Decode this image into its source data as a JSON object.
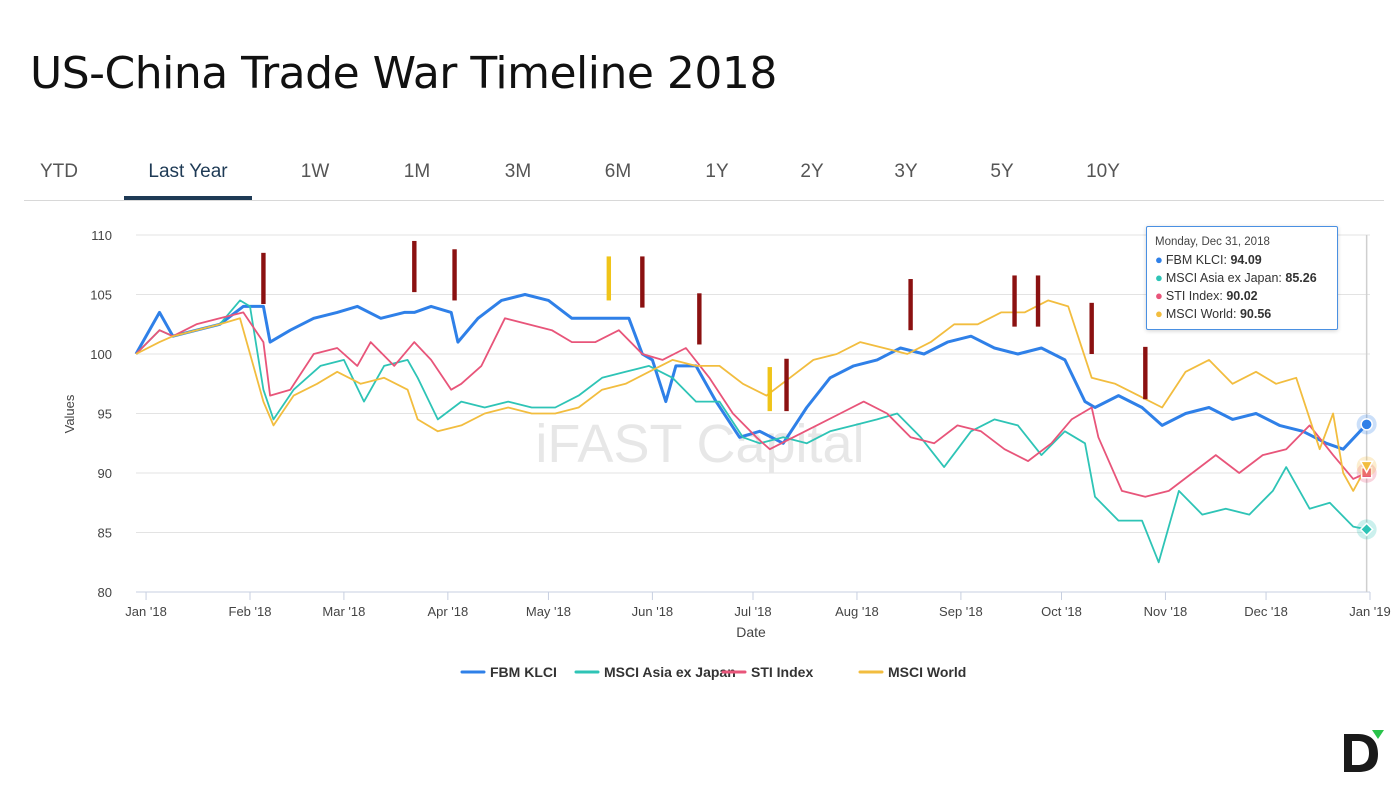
{
  "title": "US-China Trade War Timeline 2018",
  "tabs": [
    {
      "label": "YTD",
      "active": false
    },
    {
      "label": "Last Year",
      "active": true
    },
    {
      "label": "1W",
      "active": false
    },
    {
      "label": "1M",
      "active": false
    },
    {
      "label": "3M",
      "active": false
    },
    {
      "label": "6M",
      "active": false
    },
    {
      "label": "1Y",
      "active": false
    },
    {
      "label": "2Y",
      "active": false
    },
    {
      "label": "3Y",
      "active": false
    },
    {
      "label": "5Y",
      "active": false
    },
    {
      "label": "10Y",
      "active": false
    }
  ],
  "tooltip": {
    "date": "Monday, Dec 31, 2018",
    "rows": [
      {
        "name": "FBM KLCI",
        "value": "94.09",
        "color": "#2f80e8"
      },
      {
        "name": "MSCI Asia ex Japan",
        "value": "85.26",
        "color": "#2ec4b6"
      },
      {
        "name": "STI Index",
        "value": "90.02",
        "color": "#e8557a"
      },
      {
        "name": "MSCI World",
        "value": "90.56",
        "color": "#f2bd3f"
      }
    ]
  },
  "watermark": "iFAST Capital",
  "chart_data": {
    "type": "line",
    "xlabel": "Date",
    "ylabel": "Values",
    "ylim": [
      80,
      110
    ],
    "yticks": [
      80,
      85,
      90,
      95,
      100,
      105,
      110
    ],
    "x_range": [
      "2017-12-29",
      "2019-01-01"
    ],
    "xticks": [
      {
        "label": "Jan '18",
        "date": "2018-01-01"
      },
      {
        "label": "Feb '18",
        "date": "2018-02-01"
      },
      {
        "label": "Mar '18",
        "date": "2018-03-01"
      },
      {
        "label": "Apr '18",
        "date": "2018-04-01"
      },
      {
        "label": "May '18",
        "date": "2018-05-01"
      },
      {
        "label": "Jun '18",
        "date": "2018-06-01"
      },
      {
        "label": "Jul '18",
        "date": "2018-07-01"
      },
      {
        "label": "Aug '18",
        "date": "2018-08-01"
      },
      {
        "label": "Sep '18",
        "date": "2018-09-01"
      },
      {
        "label": "Oct '18",
        "date": "2018-10-01"
      },
      {
        "label": "Nov '18",
        "date": "2018-11-01"
      },
      {
        "label": "Dec '18",
        "date": "2018-12-01"
      },
      {
        "label": "Jan '19",
        "date": "2019-01-01"
      }
    ],
    "grid": true,
    "legend": "bottom",
    "series": [
      {
        "name": "FBM KLCI",
        "color": "#2f80e8",
        "x": [
          "2017-12-29",
          "2018-01-05",
          "2018-01-09",
          "2018-01-16",
          "2018-01-23",
          "2018-01-30",
          "2018-02-05",
          "2018-02-07",
          "2018-02-13",
          "2018-02-20",
          "2018-02-27",
          "2018-03-05",
          "2018-03-12",
          "2018-03-19",
          "2018-03-22",
          "2018-03-27",
          "2018-04-02",
          "2018-04-04",
          "2018-04-10",
          "2018-04-17",
          "2018-04-24",
          "2018-05-01",
          "2018-05-08",
          "2018-05-15",
          "2018-05-22",
          "2018-05-25",
          "2018-05-29",
          "2018-06-01",
          "2018-06-05",
          "2018-06-08",
          "2018-06-14",
          "2018-06-20",
          "2018-06-27",
          "2018-07-03",
          "2018-07-10",
          "2018-07-17",
          "2018-07-24",
          "2018-07-31",
          "2018-08-07",
          "2018-08-14",
          "2018-08-21",
          "2018-08-28",
          "2018-09-04",
          "2018-09-11",
          "2018-09-18",
          "2018-09-25",
          "2018-10-02",
          "2018-10-08",
          "2018-10-11",
          "2018-10-18",
          "2018-10-25",
          "2018-10-31",
          "2018-11-07",
          "2018-11-14",
          "2018-11-21",
          "2018-11-28",
          "2018-12-05",
          "2018-12-12",
          "2018-12-19",
          "2018-12-24",
          "2018-12-31"
        ],
        "values": [
          100,
          103.5,
          101.5,
          102,
          102.5,
          104,
          104,
          101,
          102,
          103,
          103.5,
          104,
          103,
          103.5,
          103.5,
          104,
          103.5,
          101,
          103,
          104.5,
          105,
          104.5,
          103,
          103,
          103,
          103,
          100,
          99.5,
          96,
          99,
          99,
          96,
          93,
          93.5,
          92.5,
          95.5,
          98,
          99,
          99.5,
          100.5,
          100,
          101,
          101.5,
          100.5,
          100,
          100.5,
          99.5,
          96,
          95.5,
          96.5,
          95.5,
          94,
          95,
          95.5,
          94.5,
          95,
          94,
          93.5,
          92.5,
          92,
          94.09
        ]
      },
      {
        "name": "MSCI Asia ex Japan",
        "color": "#2ec4b6",
        "x": [
          "2017-12-29",
          "2018-01-05",
          "2018-01-09",
          "2018-01-16",
          "2018-01-23",
          "2018-01-29",
          "2018-02-01",
          "2018-02-05",
          "2018-02-08",
          "2018-02-14",
          "2018-02-22",
          "2018-03-01",
          "2018-03-07",
          "2018-03-13",
          "2018-03-20",
          "2018-03-23",
          "2018-03-29",
          "2018-04-05",
          "2018-04-12",
          "2018-04-19",
          "2018-04-26",
          "2018-05-03",
          "2018-05-10",
          "2018-05-17",
          "2018-05-24",
          "2018-05-31",
          "2018-06-07",
          "2018-06-14",
          "2018-06-21",
          "2018-06-28",
          "2018-07-03",
          "2018-07-10",
          "2018-07-17",
          "2018-07-24",
          "2018-07-31",
          "2018-08-07",
          "2018-08-13",
          "2018-08-20",
          "2018-08-27",
          "2018-09-04",
          "2018-09-11",
          "2018-09-18",
          "2018-09-25",
          "2018-10-02",
          "2018-10-08",
          "2018-10-11",
          "2018-10-18",
          "2018-10-25",
          "2018-10-30",
          "2018-11-05",
          "2018-11-12",
          "2018-11-19",
          "2018-11-26",
          "2018-12-03",
          "2018-12-07",
          "2018-12-14",
          "2018-12-20",
          "2018-12-27",
          "2018-12-31"
        ],
        "values": [
          100,
          102,
          101.5,
          102,
          102.5,
          104.5,
          104,
          97,
          94.5,
          97,
          99,
          99.5,
          96,
          99,
          99.5,
          98,
          94.5,
          96,
          95.5,
          96,
          95.5,
          95.5,
          96.5,
          98,
          98.5,
          99,
          98,
          96,
          96,
          93,
          92.5,
          93,
          92.5,
          93.5,
          94,
          94.5,
          95,
          93,
          90.5,
          93.5,
          94.5,
          94,
          91.5,
          93.5,
          92.5,
          88,
          86,
          86,
          82.5,
          88.5,
          86.5,
          87,
          86.5,
          88.5,
          90.5,
          87,
          87.5,
          85.5,
          85.26
        ]
      },
      {
        "name": "STI Index",
        "color": "#e8557a",
        "x": [
          "2017-12-29",
          "2018-01-05",
          "2018-01-09",
          "2018-01-16",
          "2018-01-23",
          "2018-01-30",
          "2018-02-05",
          "2018-02-07",
          "2018-02-13",
          "2018-02-20",
          "2018-02-27",
          "2018-03-05",
          "2018-03-09",
          "2018-03-16",
          "2018-03-22",
          "2018-03-27",
          "2018-04-02",
          "2018-04-05",
          "2018-04-11",
          "2018-04-18",
          "2018-04-25",
          "2018-05-02",
          "2018-05-08",
          "2018-05-15",
          "2018-05-22",
          "2018-05-29",
          "2018-06-04",
          "2018-06-11",
          "2018-06-18",
          "2018-06-25",
          "2018-07-02",
          "2018-07-06",
          "2018-07-13",
          "2018-07-20",
          "2018-07-27",
          "2018-08-03",
          "2018-08-10",
          "2018-08-17",
          "2018-08-24",
          "2018-08-31",
          "2018-09-07",
          "2018-09-14",
          "2018-09-21",
          "2018-09-28",
          "2018-10-04",
          "2018-10-10",
          "2018-10-12",
          "2018-10-19",
          "2018-10-26",
          "2018-11-02",
          "2018-11-09",
          "2018-11-16",
          "2018-11-23",
          "2018-11-30",
          "2018-12-07",
          "2018-12-14",
          "2018-12-21",
          "2018-12-27",
          "2018-12-31"
        ],
        "values": [
          100,
          102,
          101.5,
          102.5,
          103,
          103.5,
          101,
          96.5,
          97,
          100,
          100.5,
          99,
          101,
          99,
          101,
          99.5,
          97,
          97.5,
          99,
          103,
          102.5,
          102,
          101,
          101,
          102,
          100,
          99.5,
          100.5,
          98,
          95,
          93,
          92,
          93,
          94,
          95,
          96,
          95,
          93,
          92.5,
          94,
          93.5,
          92,
          91,
          92.5,
          94.5,
          95.5,
          93,
          88.5,
          88,
          88.5,
          90,
          91.5,
          90,
          91.5,
          92,
          94,
          91.5,
          89.5,
          90.02
        ]
      },
      {
        "name": "MSCI World",
        "color": "#f2bd3f",
        "x": [
          "2017-12-29",
          "2018-01-05",
          "2018-01-09",
          "2018-01-16",
          "2018-01-23",
          "2018-01-29",
          "2018-02-02",
          "2018-02-05",
          "2018-02-08",
          "2018-02-14",
          "2018-02-21",
          "2018-02-27",
          "2018-03-06",
          "2018-03-13",
          "2018-03-20",
          "2018-03-23",
          "2018-03-29",
          "2018-04-05",
          "2018-04-12",
          "2018-04-19",
          "2018-04-26",
          "2018-05-03",
          "2018-05-10",
          "2018-05-17",
          "2018-05-24",
          "2018-05-31",
          "2018-06-07",
          "2018-06-14",
          "2018-06-21",
          "2018-06-28",
          "2018-07-05",
          "2018-07-12",
          "2018-07-19",
          "2018-07-26",
          "2018-08-02",
          "2018-08-09",
          "2018-08-16",
          "2018-08-23",
          "2018-08-30",
          "2018-09-06",
          "2018-09-13",
          "2018-09-20",
          "2018-09-27",
          "2018-10-03",
          "2018-10-10",
          "2018-10-17",
          "2018-10-24",
          "2018-10-31",
          "2018-11-07",
          "2018-11-14",
          "2018-11-21",
          "2018-11-28",
          "2018-12-04",
          "2018-12-10",
          "2018-12-17",
          "2018-12-21",
          "2018-12-24",
          "2018-12-27",
          "2018-12-31"
        ],
        "values": [
          100,
          101,
          101.5,
          102,
          102.5,
          103,
          99,
          96,
          94,
          96.5,
          97.5,
          98.5,
          97.5,
          98,
          97,
          94.5,
          93.5,
          94,
          95,
          95.5,
          95,
          95,
          95.5,
          97,
          97.5,
          98.5,
          99.5,
          99,
          99,
          97.5,
          96.5,
          98,
          99.5,
          100,
          101,
          100.5,
          100,
          101,
          102.5,
          102.5,
          103.5,
          103.5,
          104.5,
          104,
          98,
          97.5,
          96.5,
          95.5,
          98.5,
          99.5,
          97.5,
          98.5,
          97.5,
          98,
          92,
          95,
          90,
          88.5,
          90.56
        ]
      }
    ],
    "event_markers": [
      {
        "date": "2018-02-05",
        "low": 104.2,
        "high": 108.5,
        "color": "#8b1111"
      },
      {
        "date": "2018-03-22",
        "low": 105.2,
        "high": 109.5,
        "color": "#8b1111"
      },
      {
        "date": "2018-04-03",
        "low": 104.5,
        "high": 108.8,
        "color": "#8b1111"
      },
      {
        "date": "2018-05-19",
        "low": 104.5,
        "high": 108.2,
        "color": "#f0c419"
      },
      {
        "date": "2018-05-29",
        "low": 103.9,
        "high": 108.2,
        "color": "#8b1111"
      },
      {
        "date": "2018-06-15",
        "low": 100.8,
        "high": 105.1,
        "color": "#8b1111"
      },
      {
        "date": "2018-07-06",
        "low": 95.2,
        "high": 98.9,
        "color": "#f0c419"
      },
      {
        "date": "2018-07-11",
        "low": 95.2,
        "high": 99.6,
        "color": "#8b1111"
      },
      {
        "date": "2018-08-17",
        "low": 102.0,
        "high": 106.3,
        "color": "#8b1111"
      },
      {
        "date": "2018-09-17",
        "low": 102.3,
        "high": 106.6,
        "color": "#8b1111"
      },
      {
        "date": "2018-09-24",
        "low": 102.3,
        "high": 106.6,
        "color": "#8b1111"
      },
      {
        "date": "2018-10-10",
        "low": 100.0,
        "high": 104.3,
        "color": "#8b1111"
      },
      {
        "date": "2018-10-26",
        "low": 96.2,
        "high": 100.6,
        "color": "#8b1111"
      }
    ],
    "crosshair_date": "2018-12-31"
  }
}
